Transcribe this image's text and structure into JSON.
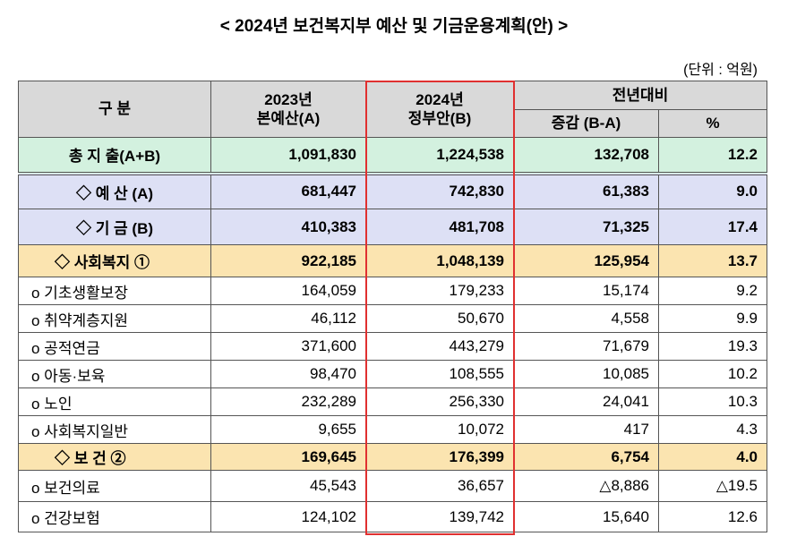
{
  "title": "< 2024년 보건복지부 예산 및 기금운용계획(안) >",
  "unit": "(단위 : 억원)",
  "header": {
    "category": "구 분",
    "year_2023": "2023년",
    "sub_2023": "본예산(A)",
    "year_2024": "2024년",
    "sub_2024": "정부안(B)",
    "yoy": "전년대비",
    "diff": "증감 (B-A)",
    "pct": "%"
  },
  "rows": [
    [
      "총 지 출(A+B)",
      "1,091,830",
      "1,224,538",
      "132,708",
      "12.2"
    ],
    [
      "◇ 예 산 (A)",
      "681,447",
      "742,830",
      "61,383",
      "9.0"
    ],
    [
      "◇ 기 금 (B)",
      "410,383",
      "481,708",
      "71,325",
      "17.4"
    ],
    [
      "◇ 사회복지 ①",
      "922,185",
      "1,048,139",
      "125,954",
      "13.7"
    ],
    [
      "o 기초생활보장",
      "164,059",
      "179,233",
      "15,174",
      "9.2"
    ],
    [
      "o 취약계층지원",
      "46,112",
      "50,670",
      "4,558",
      "9.9"
    ],
    [
      "o 공적연금",
      "371,600",
      "443,279",
      "71,679",
      "19.3"
    ],
    [
      "o 아동·보육",
      "98,470",
      "108,555",
      "10,085",
      "10.2"
    ],
    [
      "o 노인",
      "232,289",
      "256,330",
      "24,041",
      "10.3"
    ],
    [
      "o 사회복지일반",
      "9,655",
      "10,072",
      "417",
      "4.3"
    ],
    [
      "◇ 보 건 ②",
      "169,645",
      "176,399",
      "6,754",
      "4.0"
    ],
    [
      "o 보건의료",
      "45,543",
      "36,657",
      "△8,886",
      "△19.5"
    ],
    [
      "o 건강보험",
      "124,102",
      "139,742",
      "15,640",
      "12.6"
    ]
  ]
}
